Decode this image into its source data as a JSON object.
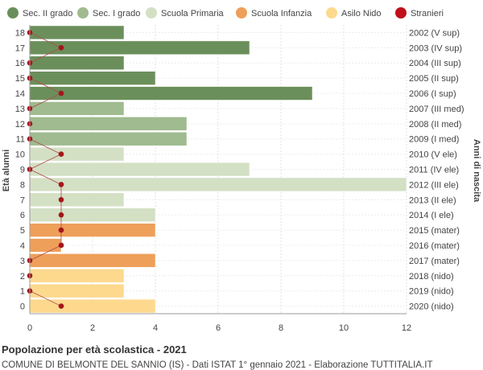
{
  "chart_data": {
    "type": "bar",
    "orientation": "horizontal",
    "title": "Popolazione per età scolastica - 2021",
    "subtitle": "COMUNE DI BELMONTE DEL SANNIO (IS) - Dati ISTAT 1° gennaio 2021 - Elaborazione TUTTITALIA.IT",
    "ylabel": "Età alunni",
    "ylabel_right": "Anni di nascita",
    "xlim": [
      0,
      12
    ],
    "x_ticks": [
      "0",
      "2",
      "4",
      "6",
      "8",
      "10",
      "12"
    ],
    "grid": true,
    "legend_position": "top",
    "legend": [
      {
        "key": "sec2",
        "label": "Sec. II grado",
        "color": "#6b8f5a"
      },
      {
        "key": "sec1",
        "label": "Sec. I grado",
        "color": "#9fbb8f"
      },
      {
        "key": "prim",
        "label": "Scuola Primaria",
        "color": "#d3e0c4"
      },
      {
        "key": "inf",
        "label": "Scuola Infanzia",
        "color": "#ee9f5a"
      },
      {
        "key": "nido",
        "label": "Asilo Nido",
        "color": "#fdd98e"
      },
      {
        "key": "stranieri",
        "label": "Stranieri",
        "color": "#c0101a"
      }
    ],
    "rows": [
      {
        "age": "18",
        "birth": "2002 (V sup)",
        "value": 3,
        "stranieri": 0,
        "group": "sec2"
      },
      {
        "age": "17",
        "birth": "2003 (IV sup)",
        "value": 7,
        "stranieri": 1,
        "group": "sec2"
      },
      {
        "age": "16",
        "birth": "2004 (III sup)",
        "value": 3,
        "stranieri": 0,
        "group": "sec2"
      },
      {
        "age": "15",
        "birth": "2005 (II sup)",
        "value": 4,
        "stranieri": 0,
        "group": "sec2"
      },
      {
        "age": "14",
        "birth": "2006 (I sup)",
        "value": 9,
        "stranieri": 1,
        "group": "sec2"
      },
      {
        "age": "13",
        "birth": "2007 (III med)",
        "value": 3,
        "stranieri": 0,
        "group": "sec1"
      },
      {
        "age": "12",
        "birth": "2008 (II med)",
        "value": 5,
        "stranieri": 0,
        "group": "sec1"
      },
      {
        "age": "11",
        "birth": "2009 (I med)",
        "value": 5,
        "stranieri": 0,
        "group": "sec1"
      },
      {
        "age": "10",
        "birth": "2010 (V ele)",
        "value": 3,
        "stranieri": 1,
        "group": "prim"
      },
      {
        "age": "9",
        "birth": "2011 (IV ele)",
        "value": 7,
        "stranieri": 0,
        "group": "prim"
      },
      {
        "age": "8",
        "birth": "2012 (III ele)",
        "value": 12,
        "stranieri": 1,
        "group": "prim"
      },
      {
        "age": "7",
        "birth": "2013 (II ele)",
        "value": 3,
        "stranieri": 1,
        "group": "prim"
      },
      {
        "age": "6",
        "birth": "2014 (I ele)",
        "value": 4,
        "stranieri": 1,
        "group": "prim"
      },
      {
        "age": "5",
        "birth": "2015 (mater)",
        "value": 4,
        "stranieri": 1,
        "group": "inf"
      },
      {
        "age": "4",
        "birth": "2016 (mater)",
        "value": 1,
        "stranieri": 1,
        "group": "inf"
      },
      {
        "age": "3",
        "birth": "2017 (mater)",
        "value": 4,
        "stranieri": 0,
        "group": "inf"
      },
      {
        "age": "2",
        "birth": "2018 (nido)",
        "value": 3,
        "stranieri": 0,
        "group": "nido"
      },
      {
        "age": "1",
        "birth": "2019 (nido)",
        "value": 3,
        "stranieri": 0,
        "group": "nido"
      },
      {
        "age": "0",
        "birth": "2020 (nido)",
        "value": 4,
        "stranieri": 1,
        "group": "nido"
      }
    ]
  }
}
